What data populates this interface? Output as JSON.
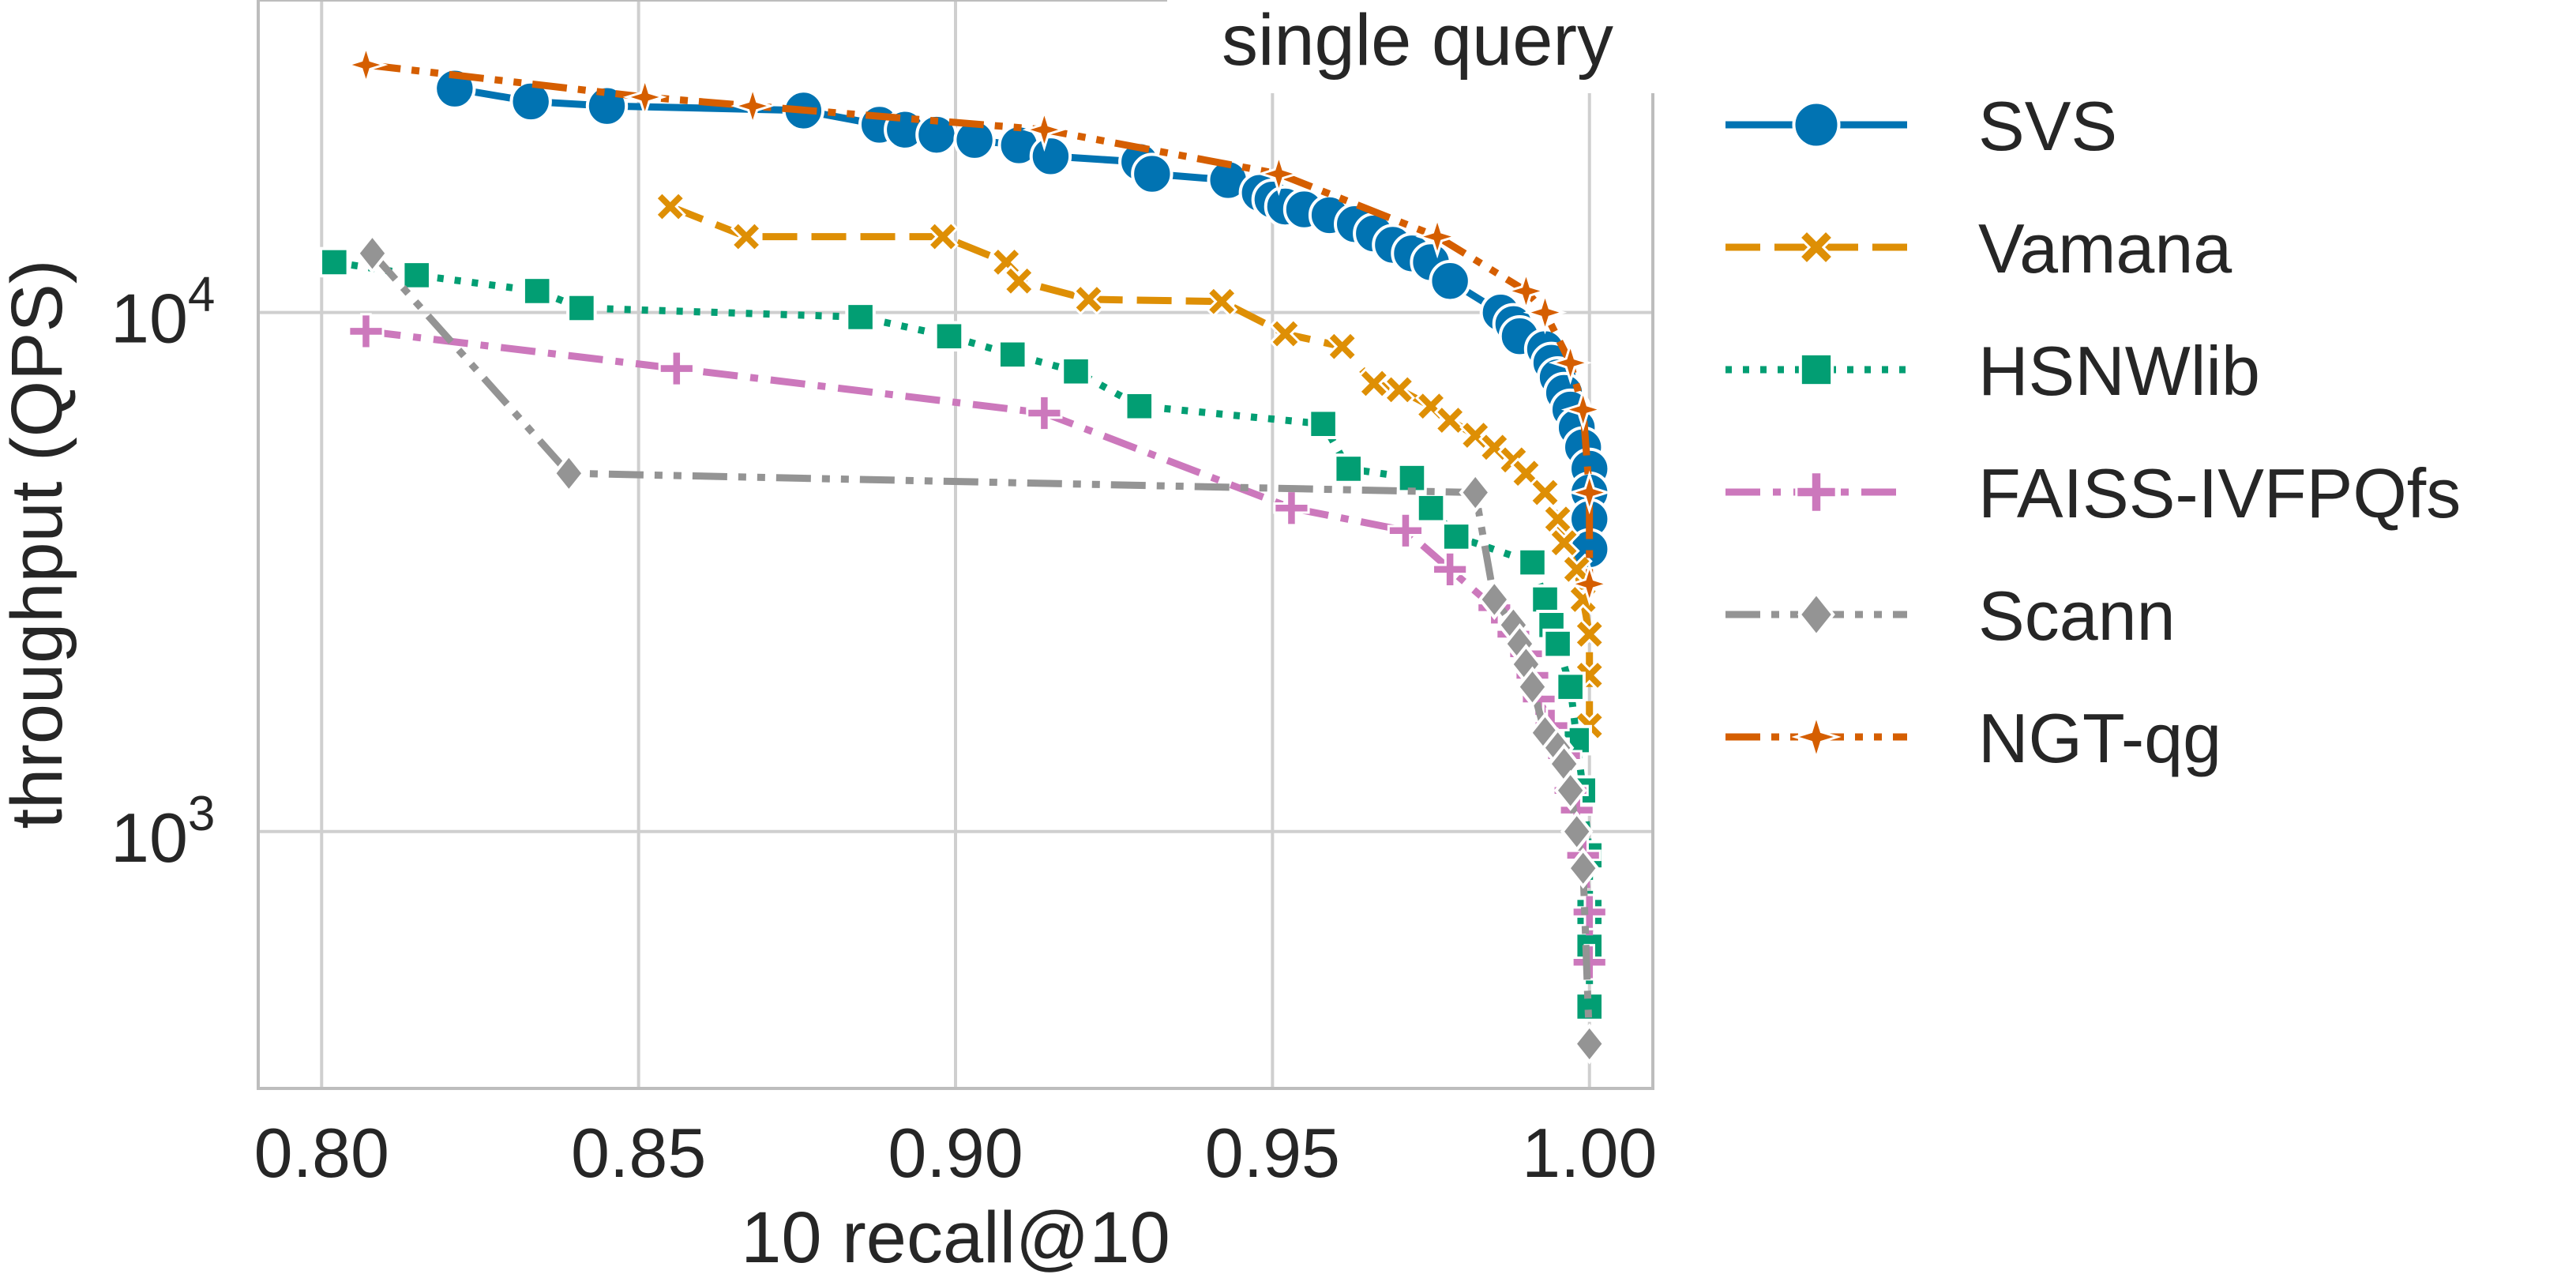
{
  "chart_data": {
    "type": "line",
    "title": "single query",
    "xlabel": "10 recall@10",
    "ylabel": "throughput (QPS)",
    "xscale": "linear",
    "yscale": "log",
    "xlim": [
      0.79,
      1.01
    ],
    "ylim": [
      320,
      40000
    ],
    "xticks": [
      0.8,
      0.85,
      0.9,
      0.95,
      1.0
    ],
    "xtick_labels": [
      "0.80",
      "0.85",
      "0.90",
      "0.95",
      "1.00"
    ],
    "yticks": [
      1000,
      10000
    ],
    "ytick_labels": [
      {
        "base": "10",
        "exp": "3"
      },
      {
        "base": "10",
        "exp": "4"
      }
    ],
    "grid": true,
    "legend": "outside-right",
    "series": [
      {
        "name": "SVS",
        "color": "#0173b2",
        "marker": "circle",
        "dash": "solid",
        "points": [
          [
            0.821,
            27000
          ],
          [
            0.833,
            25500
          ],
          [
            0.845,
            25000
          ],
          [
            0.876,
            24500
          ],
          [
            0.888,
            23000
          ],
          [
            0.892,
            22500
          ],
          [
            0.897,
            22000
          ],
          [
            0.903,
            21500
          ],
          [
            0.91,
            21000
          ],
          [
            0.915,
            20000
          ],
          [
            0.929,
            19500
          ],
          [
            0.931,
            18500
          ],
          [
            0.943,
            18000
          ],
          [
            0.948,
            17000
          ],
          [
            0.95,
            16500
          ],
          [
            0.952,
            16000
          ],
          [
            0.955,
            15800
          ],
          [
            0.959,
            15400
          ],
          [
            0.963,
            14800
          ],
          [
            0.966,
            14200
          ],
          [
            0.969,
            13500
          ],
          [
            0.972,
            13000
          ],
          [
            0.975,
            12500
          ],
          [
            0.978,
            11500
          ],
          [
            0.986,
            10000
          ],
          [
            0.988,
            9500
          ],
          [
            0.989,
            9000
          ],
          [
            0.993,
            8500
          ],
          [
            0.994,
            8000
          ],
          [
            0.995,
            7500
          ],
          [
            0.996,
            7000
          ],
          [
            0.997,
            6500
          ],
          [
            0.998,
            6000
          ],
          [
            0.999,
            5500
          ],
          [
            1.0,
            5000
          ],
          [
            1.0,
            4500
          ],
          [
            1.0,
            4000
          ],
          [
            1.0,
            3500
          ]
        ]
      },
      {
        "name": "Vamana",
        "color": "#de8f05",
        "marker": "x",
        "dash": "dashed",
        "points": [
          [
            0.855,
            16000
          ],
          [
            0.867,
            14000
          ],
          [
            0.898,
            14000
          ],
          [
            0.908,
            12500
          ],
          [
            0.91,
            11500
          ],
          [
            0.921,
            10600
          ],
          [
            0.942,
            10500
          ],
          [
            0.952,
            9100
          ],
          [
            0.961,
            8600
          ],
          [
            0.966,
            7300
          ],
          [
            0.97,
            7100
          ],
          [
            0.975,
            6600
          ],
          [
            0.978,
            6200
          ],
          [
            0.982,
            5800
          ],
          [
            0.985,
            5500
          ],
          [
            0.988,
            5200
          ],
          [
            0.99,
            4900
          ],
          [
            0.993,
            4500
          ],
          [
            0.995,
            4000
          ],
          [
            0.996,
            3600
          ],
          [
            0.998,
            3200
          ],
          [
            0.999,
            2800
          ],
          [
            1.0,
            2400
          ],
          [
            1.0,
            2000
          ],
          [
            1.0,
            1600
          ]
        ]
      },
      {
        "name": "HSNWlib",
        "color": "#029e73",
        "marker": "square",
        "dash": "dotted",
        "points": [
          [
            0.802,
            12500
          ],
          [
            0.815,
            11800
          ],
          [
            0.834,
            11000
          ],
          [
            0.841,
            10200
          ],
          [
            0.885,
            9800
          ],
          [
            0.899,
            9000
          ],
          [
            0.909,
            8300
          ],
          [
            0.919,
            7700
          ],
          [
            0.929,
            6600
          ],
          [
            0.958,
            6100
          ],
          [
            0.962,
            5000
          ],
          [
            0.972,
            4800
          ],
          [
            0.975,
            4200
          ],
          [
            0.979,
            3700
          ],
          [
            0.991,
            3300
          ],
          [
            0.993,
            2800
          ],
          [
            0.994,
            2500
          ],
          [
            0.995,
            2300
          ],
          [
            0.997,
            1900
          ],
          [
            0.998,
            1500
          ],
          [
            0.999,
            1200
          ],
          [
            1.0,
            900
          ],
          [
            1.0,
            700
          ],
          [
            1.0,
            600
          ],
          [
            1.0,
            460
          ]
        ]
      },
      {
        "name": "FAISS-IVFPQfs",
        "color": "#cc78bc",
        "marker": "plus",
        "dash": "dashdot",
        "points": [
          [
            0.807,
            9200
          ],
          [
            0.856,
            7800
          ],
          [
            0.914,
            6400
          ],
          [
            0.953,
            4200
          ],
          [
            0.971,
            3800
          ],
          [
            0.978,
            3200
          ],
          [
            0.985,
            2700
          ],
          [
            0.988,
            2400
          ],
          [
            0.99,
            2200
          ],
          [
            0.991,
            2000
          ],
          [
            0.992,
            1800
          ],
          [
            0.994,
            1600
          ],
          [
            0.996,
            1400
          ],
          [
            0.997,
            1200
          ],
          [
            0.998,
            1100
          ],
          [
            0.999,
            900
          ],
          [
            1.0,
            700
          ],
          [
            1.0,
            560
          ]
        ]
      },
      {
        "name": "Scann",
        "color": "#949494",
        "marker": "diamond",
        "dash": "dashdotdot",
        "points": [
          [
            0.808,
            13000
          ],
          [
            0.839,
            4900
          ],
          [
            0.982,
            4500
          ],
          [
            0.985,
            2800
          ],
          [
            0.988,
            2500
          ],
          [
            0.989,
            2300
          ],
          [
            0.99,
            2100
          ],
          [
            0.991,
            1900
          ],
          [
            0.993,
            1550
          ],
          [
            0.995,
            1450
          ],
          [
            0.996,
            1350
          ],
          [
            0.997,
            1200
          ],
          [
            0.998,
            1000
          ],
          [
            0.999,
            850
          ],
          [
            1.0,
            390
          ]
        ]
      },
      {
        "name": "NGT-qg",
        "color": "#d55e00",
        "marker": "star",
        "dash": "dashdotdot",
        "points": [
          [
            0.807,
            30000
          ],
          [
            0.851,
            26000
          ],
          [
            0.868,
            25000
          ],
          [
            0.914,
            22500
          ],
          [
            0.951,
            18500
          ],
          [
            0.976,
            14000
          ],
          [
            0.99,
            11000
          ],
          [
            0.993,
            10000
          ],
          [
            0.997,
            8000
          ],
          [
            0.999,
            6500
          ],
          [
            1.0,
            4500
          ],
          [
            1.0,
            3000
          ]
        ]
      }
    ]
  }
}
